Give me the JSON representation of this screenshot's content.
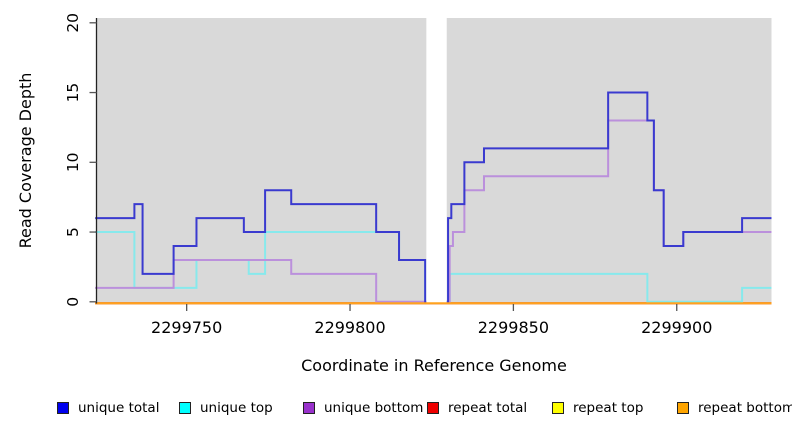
{
  "figure": {
    "background": "#ffffff",
    "panel_background": "#d9d9d9",
    "axis_color": "#222222",
    "tick_color": "#555555",
    "text_color": "#000000"
  },
  "chart_data": {
    "type": "line",
    "subtype": "step-post",
    "title": "",
    "xlabel": "Coordinate in Reference Genome",
    "ylabel": "Read Coverage Depth",
    "xlim": [
      2299722.4,
      2299929
    ],
    "ylim": [
      0,
      20
    ],
    "grid": false,
    "legend_position": "bottom",
    "x_tick_values": [
      2299750,
      2299800,
      2299850,
      2299900
    ],
    "x_tick_labels": [
      "2299750",
      "2299800",
      "2299850",
      "2299900"
    ],
    "y_tick_values": [
      0,
      5,
      10,
      15,
      20
    ],
    "y_tick_labels": [
      "0",
      "5",
      "10",
      "15",
      "20"
    ],
    "gap_region": {
      "x1": 2299823.35,
      "x2": 2299829.6,
      "color": "#ffffff"
    },
    "series": [
      {
        "name": "unique total",
        "line_color": "#3A3ACF",
        "swatch_color": "#0000EE",
        "points": [
          [
            2299722,
            6
          ],
          [
            2299734,
            7
          ],
          [
            2299736.5,
            2
          ],
          [
            2299746,
            4
          ],
          [
            2299753,
            6
          ],
          [
            2299767.5,
            5
          ],
          [
            2299774,
            8
          ],
          [
            2299782,
            7
          ],
          [
            2299808,
            5
          ],
          [
            2299815,
            3
          ],
          [
            2299823,
            0
          ],
          [
            2299830,
            6
          ],
          [
            2299831,
            7
          ],
          [
            2299835,
            10
          ],
          [
            2299841,
            11
          ],
          [
            2299879,
            15
          ],
          [
            2299891,
            13
          ],
          [
            2299893,
            8
          ],
          [
            2299896,
            4
          ],
          [
            2299902,
            5
          ],
          [
            2299920,
            6
          ]
        ],
        "x_end": 2299929
      },
      {
        "name": "unique top",
        "line_color": "#87E9EC",
        "swatch_color": "#00FFFF",
        "points": [
          [
            2299722,
            5
          ],
          [
            2299734,
            1
          ],
          [
            2299753,
            3
          ],
          [
            2299769,
            2
          ],
          [
            2299774,
            5
          ],
          [
            2299815,
            3
          ],
          [
            2299823,
            0
          ],
          [
            2299830.5,
            2
          ],
          [
            2299891,
            0
          ],
          [
            2299920,
            1
          ]
        ],
        "x_end": 2299929
      },
      {
        "name": "unique bottom",
        "line_color": "#BB90DC",
        "swatch_color": "#9932CC",
        "points": [
          [
            2299722,
            1
          ],
          [
            2299746,
            3
          ],
          [
            2299782,
            2
          ],
          [
            2299808,
            0
          ],
          [
            2299830.5,
            4
          ],
          [
            2299831.5,
            5
          ],
          [
            2299835,
            8
          ],
          [
            2299841,
            9
          ],
          [
            2299879,
            13
          ],
          [
            2299893,
            8
          ],
          [
            2299896,
            4
          ],
          [
            2299902,
            5
          ]
        ],
        "x_end": 2299929
      },
      {
        "name": "repeat total",
        "line_color": "#DD2222",
        "swatch_color": "#EE0000",
        "points": [
          [
            2299722,
            0
          ]
        ],
        "x_end": 2299929
      },
      {
        "name": "repeat top",
        "line_color": "#EEEE22",
        "swatch_color": "#FFFF00",
        "points": [
          [
            2299722,
            0
          ]
        ],
        "x_end": 2299929
      },
      {
        "name": "repeat bottom",
        "line_color": "#FFA21E",
        "swatch_color": "#FFA500",
        "points": [
          [
            2299722,
            0
          ]
        ],
        "x_end": 2299929
      }
    ]
  }
}
